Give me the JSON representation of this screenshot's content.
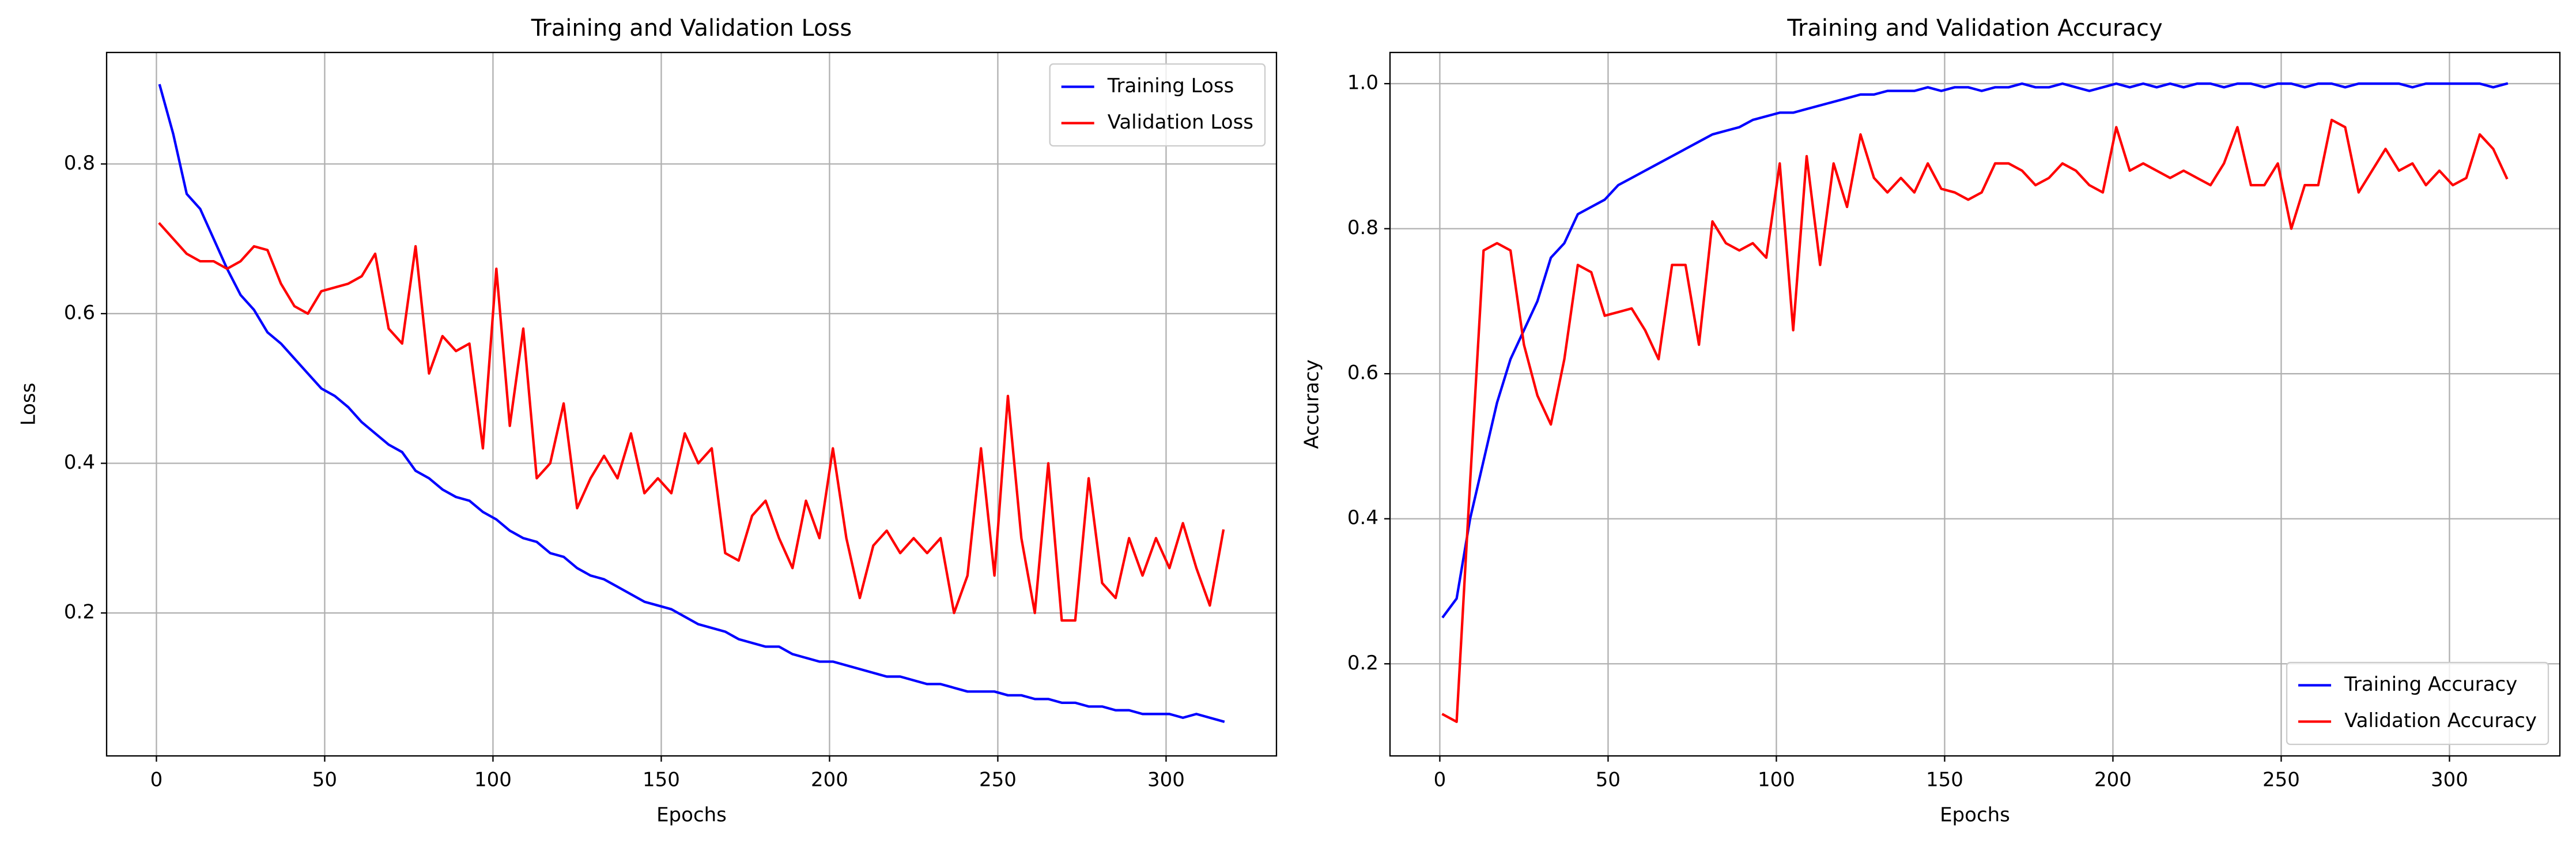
{
  "chart_data": [
    {
      "type": "line",
      "title": "Training and Validation Loss",
      "x_label": "Epochs",
      "y_label": "Loss",
      "x": [
        1,
        5,
        9,
        13,
        17,
        21,
        25,
        29,
        33,
        37,
        41,
        45,
        49,
        53,
        57,
        61,
        65,
        69,
        73,
        77,
        81,
        85,
        89,
        93,
        97,
        101,
        105,
        109,
        113,
        117,
        121,
        125,
        129,
        133,
        137,
        141,
        145,
        149,
        153,
        157,
        161,
        165,
        169,
        173,
        177,
        181,
        185,
        189,
        193,
        197,
        201,
        205,
        209,
        213,
        217,
        221,
        225,
        229,
        233,
        237,
        241,
        245,
        249,
        253,
        257,
        261,
        265,
        269,
        273,
        277,
        281,
        285,
        289,
        293,
        297,
        301,
        305,
        309,
        313,
        317
      ],
      "series": [
        {
          "name": "Training Loss",
          "color": "#0000ff",
          "values": [
            0.905,
            0.84,
            0.76,
            0.74,
            0.7,
            0.66,
            0.625,
            0.605,
            0.575,
            0.56,
            0.54,
            0.52,
            0.5,
            0.49,
            0.475,
            0.455,
            0.44,
            0.425,
            0.415,
            0.39,
            0.38,
            0.365,
            0.355,
            0.35,
            0.335,
            0.325,
            0.31,
            0.3,
            0.295,
            0.28,
            0.275,
            0.26,
            0.25,
            0.245,
            0.235,
            0.225,
            0.215,
            0.21,
            0.205,
            0.195,
            0.185,
            0.18,
            0.175,
            0.165,
            0.16,
            0.155,
            0.155,
            0.145,
            0.14,
            0.135,
            0.135,
            0.13,
            0.125,
            0.12,
            0.115,
            0.115,
            0.11,
            0.105,
            0.105,
            0.1,
            0.095,
            0.095,
            0.095,
            0.09,
            0.09,
            0.085,
            0.085,
            0.08,
            0.08,
            0.075,
            0.075,
            0.07,
            0.07,
            0.065,
            0.065,
            0.065,
            0.06,
            0.065,
            0.06,
            0.055
          ]
        },
        {
          "name": "Validation Loss",
          "color": "#ff0000",
          "values": [
            0.72,
            0.7,
            0.68,
            0.67,
            0.67,
            0.66,
            0.67,
            0.69,
            0.685,
            0.64,
            0.61,
            0.6,
            0.63,
            0.635,
            0.64,
            0.65,
            0.68,
            0.58,
            0.56,
            0.69,
            0.52,
            0.57,
            0.55,
            0.56,
            0.42,
            0.66,
            0.45,
            0.58,
            0.38,
            0.4,
            0.48,
            0.34,
            0.38,
            0.41,
            0.38,
            0.44,
            0.36,
            0.38,
            0.36,
            0.44,
            0.4,
            0.42,
            0.28,
            0.27,
            0.33,
            0.35,
            0.3,
            0.26,
            0.35,
            0.3,
            0.42,
            0.3,
            0.22,
            0.29,
            0.31,
            0.28,
            0.3,
            0.28,
            0.3,
            0.2,
            0.25,
            0.42,
            0.25,
            0.49,
            0.3,
            0.2,
            0.4,
            0.19,
            0.19,
            0.38,
            0.24,
            0.22,
            0.3,
            0.25,
            0.3,
            0.26,
            0.32,
            0.26,
            0.21,
            0.31
          ]
        }
      ],
      "xlim": [
        -14.8,
        332.8
      ],
      "ylim": [
        0.009,
        0.949
      ],
      "xticks": [
        0,
        50,
        100,
        150,
        200,
        250,
        300
      ],
      "yticks": [
        0.2,
        0.4,
        0.6,
        0.8
      ],
      "grid": true,
      "legend": "upper right"
    },
    {
      "type": "line",
      "title": "Training and Validation Accuracy",
      "x_label": "Epochs",
      "y_label": "Accuracy",
      "x": [
        1,
        5,
        9,
        13,
        17,
        21,
        25,
        29,
        33,
        37,
        41,
        45,
        49,
        53,
        57,
        61,
        65,
        69,
        73,
        77,
        81,
        85,
        89,
        93,
        97,
        101,
        105,
        109,
        113,
        117,
        121,
        125,
        129,
        133,
        137,
        141,
        145,
        149,
        153,
        157,
        161,
        165,
        169,
        173,
        177,
        181,
        185,
        189,
        193,
        197,
        201,
        205,
        209,
        213,
        217,
        221,
        225,
        229,
        233,
        237,
        241,
        245,
        249,
        253,
        257,
        261,
        265,
        269,
        273,
        277,
        281,
        285,
        289,
        293,
        297,
        301,
        305,
        309,
        313,
        317
      ],
      "series": [
        {
          "name": "Training Accuracy",
          "color": "#0000ff",
          "values": [
            0.265,
            0.29,
            0.4,
            0.48,
            0.56,
            0.62,
            0.66,
            0.7,
            0.76,
            0.78,
            0.82,
            0.83,
            0.84,
            0.86,
            0.87,
            0.88,
            0.89,
            0.9,
            0.91,
            0.92,
            0.93,
            0.935,
            0.94,
            0.95,
            0.955,
            0.96,
            0.96,
            0.965,
            0.97,
            0.975,
            0.98,
            0.985,
            0.985,
            0.99,
            0.99,
            0.99,
            0.995,
            0.99,
            0.995,
            0.995,
            0.99,
            0.995,
            0.995,
            1.0,
            0.995,
            0.995,
            1.0,
            0.995,
            0.99,
            0.995,
            1.0,
            0.995,
            1.0,
            0.995,
            1.0,
            0.995,
            1.0,
            1.0,
            0.995,
            1.0,
            1.0,
            0.995,
            1.0,
            1.0,
            0.995,
            1.0,
            1.0,
            0.995,
            1.0,
            1.0,
            1.0,
            1.0,
            0.995,
            1.0,
            1.0,
            1.0,
            1.0,
            1.0,
            0.995,
            1.0
          ]
        },
        {
          "name": "Validation Accuracy",
          "color": "#ff0000",
          "values": [
            0.13,
            0.12,
            0.45,
            0.77,
            0.78,
            0.77,
            0.64,
            0.57,
            0.53,
            0.62,
            0.75,
            0.74,
            0.68,
            0.685,
            0.69,
            0.66,
            0.62,
            0.75,
            0.75,
            0.64,
            0.81,
            0.78,
            0.77,
            0.78,
            0.76,
            0.89,
            0.66,
            0.9,
            0.75,
            0.89,
            0.83,
            0.93,
            0.87,
            0.85,
            0.87,
            0.85,
            0.89,
            0.855,
            0.85,
            0.84,
            0.85,
            0.89,
            0.89,
            0.88,
            0.86,
            0.87,
            0.89,
            0.88,
            0.86,
            0.85,
            0.94,
            0.88,
            0.89,
            0.88,
            0.87,
            0.88,
            0.87,
            0.86,
            0.89,
            0.94,
            0.86,
            0.86,
            0.89,
            0.8,
            0.86,
            0.86,
            0.95,
            0.94,
            0.85,
            0.88,
            0.91,
            0.88,
            0.89,
            0.86,
            0.88,
            0.86,
            0.87,
            0.93,
            0.91,
            0.87
          ]
        }
      ],
      "xlim": [
        -14.8,
        332.8
      ],
      "ylim": [
        0.073,
        1.043
      ],
      "xticks": [
        0,
        50,
        100,
        150,
        200,
        250,
        300
      ],
      "yticks": [
        0.2,
        0.4,
        0.6,
        0.8,
        {
          "value": 1,
          "label": "1.0"
        }
      ],
      "grid": true,
      "legend": "lower right"
    }
  ]
}
